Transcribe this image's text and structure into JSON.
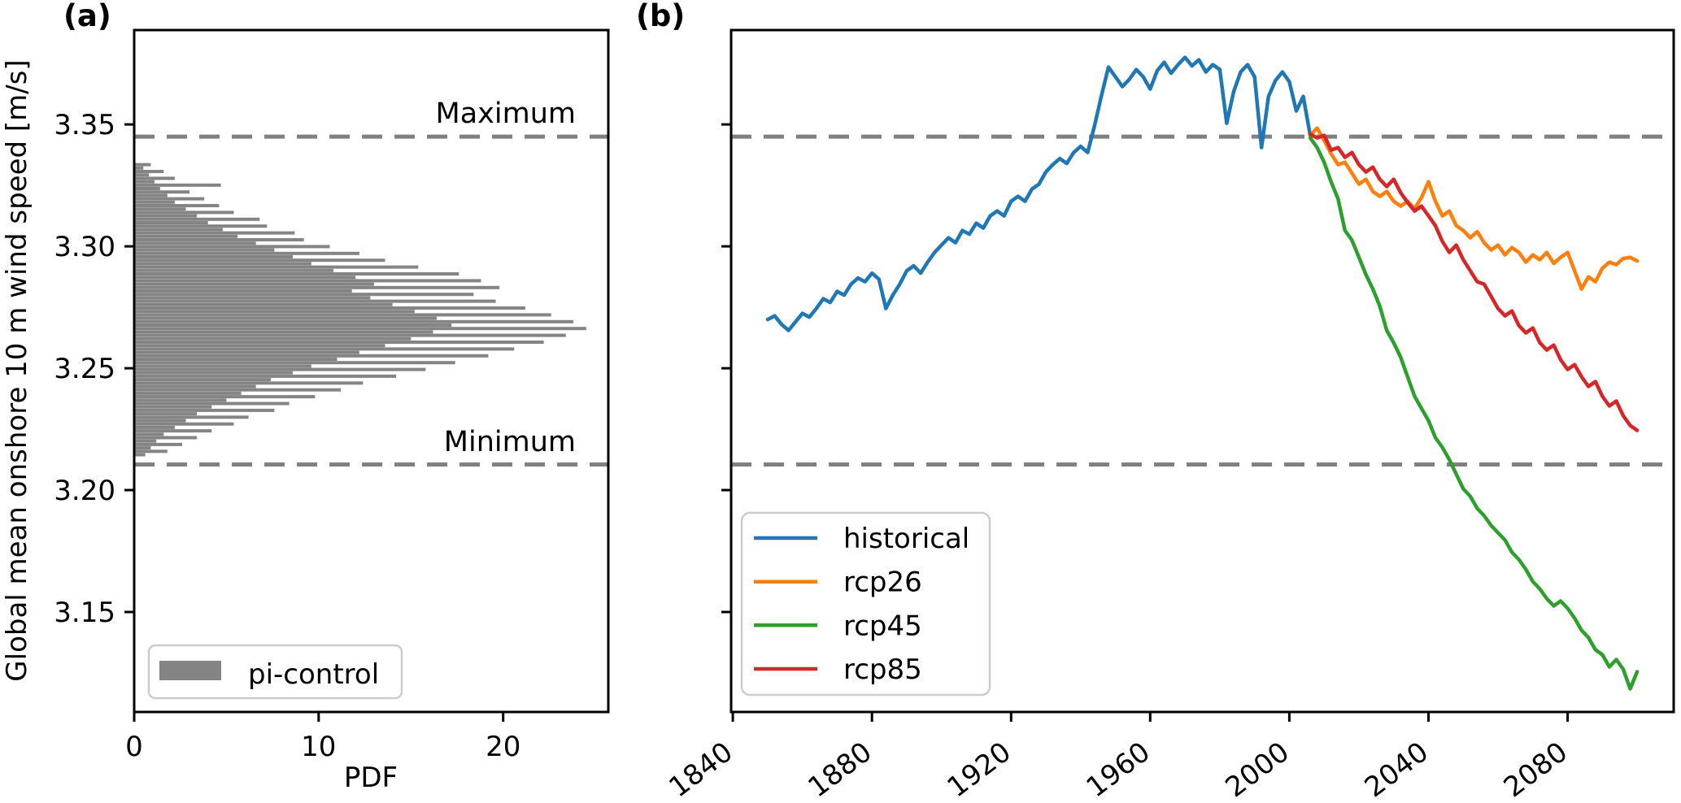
{
  "figure": {
    "background": "#ffffff",
    "text_color": "#000000",
    "dashed_line_color": "#808080",
    "histogram_color": "#848484",
    "legend_border_color": "#cccccc"
  },
  "chart_data": [
    {
      "type": "bar",
      "panel_label": "(a)",
      "orientation": "horizontal",
      "xlabel": "PDF",
      "ylabel": "Global mean onshore 10 m wind speed [m/s]",
      "xlim": [
        0,
        25.7
      ],
      "ylim": [
        3.109,
        3.3887
      ],
      "xticks": [
        0,
        10,
        20
      ],
      "yticks": [
        3.15,
        3.2,
        3.25,
        3.3,
        3.35
      ],
      "grid": false,
      "legend_position": "lower left",
      "legend": [
        {
          "label": "pi-control",
          "color": "#848484"
        }
      ],
      "reference_lines": {
        "max": {
          "label": "Maximum",
          "value": 3.345
        },
        "min": {
          "label": "Minimum",
          "value": 3.2105
        }
      },
      "bins": {
        "start": 3.2145,
        "step": 0.0014
      },
      "values": [
        0.6,
        1.8,
        0.9,
        2.6,
        1.2,
        3.4,
        1.6,
        4.2,
        2.2,
        5.4,
        2.8,
        6.2,
        3.4,
        7.6,
        4.2,
        8.4,
        5.0,
        9.8,
        5.8,
        11.2,
        6.6,
        12.4,
        7.4,
        14.2,
        8.6,
        15.8,
        9.6,
        17.4,
        11.0,
        19.2,
        12.2,
        20.6,
        13.6,
        22.2,
        15.0,
        23.4,
        16.2,
        24.5,
        17.2,
        23.8,
        16.4,
        22.6,
        15.2,
        21.2,
        14.0,
        19.6,
        12.8,
        18.4,
        11.8,
        19.8,
        13.0,
        18.8,
        12.0,
        17.6,
        10.8,
        15.4,
        9.6,
        13.6,
        8.6,
        12.2,
        7.6,
        10.6,
        6.6,
        9.2,
        5.6,
        8.7,
        4.8,
        7.2,
        4.0,
        6.8,
        3.4,
        5.4,
        2.8,
        4.6,
        2.2,
        3.8,
        1.8,
        3.0,
        1.4,
        4.7,
        1.1,
        2.2,
        0.8,
        1.6,
        0.5,
        0.9
      ]
    },
    {
      "type": "line",
      "panel_label": "(b)",
      "xlabel": "",
      "xlim": [
        1839.5,
        2110.5
      ],
      "ylim": [
        3.109,
        3.3887
      ],
      "xticks": [
        1840,
        1880,
        1920,
        1960,
        2000,
        2040,
        2080
      ],
      "yticks": [
        3.15,
        3.2,
        3.25,
        3.3,
        3.35
      ],
      "xtick_rotation": 37,
      "grid": false,
      "legend_position": "lower left",
      "reference_lines": {
        "max": {
          "value": 3.345
        },
        "min": {
          "value": 3.2105
        }
      },
      "series": [
        {
          "name": "historical",
          "color": "#1f77b4",
          "start": 1850,
          "step": 2,
          "values": [
            3.27,
            3.2715,
            3.268,
            3.2655,
            3.269,
            3.2725,
            3.271,
            3.2745,
            3.2785,
            3.277,
            3.2815,
            3.28,
            3.2845,
            3.287,
            3.2855,
            3.289,
            3.2865,
            3.2745,
            3.28,
            3.2845,
            3.29,
            3.292,
            3.289,
            3.2935,
            3.2975,
            3.3005,
            3.3035,
            3.3015,
            3.3065,
            3.305,
            3.3095,
            3.3075,
            3.3125,
            3.3145,
            3.3125,
            3.3185,
            3.3205,
            3.3185,
            3.3235,
            3.3255,
            3.3305,
            3.3335,
            3.336,
            3.334,
            3.3385,
            3.341,
            3.3385,
            3.3495,
            3.362,
            3.3735,
            3.3695,
            3.3655,
            3.3685,
            3.3725,
            3.3695,
            3.3645,
            3.372,
            3.3755,
            3.371,
            3.3745,
            3.3775,
            3.374,
            3.3765,
            3.3715,
            3.3745,
            3.3725,
            3.3505,
            3.3635,
            3.3715,
            3.3745,
            3.3695,
            3.3405,
            3.3615,
            3.368,
            3.3715,
            3.3675,
            3.3555,
            3.3615,
            3.3455
          ]
        },
        {
          "name": "rcp26",
          "color": "#ff7f0e",
          "start": 2006,
          "step": 2,
          "values": [
            3.3455,
            3.3485,
            3.3435,
            3.338,
            3.3335,
            3.3345,
            3.33,
            3.3255,
            3.3275,
            3.3225,
            3.3205,
            3.3225,
            3.3185,
            3.3165,
            3.3185,
            3.3155,
            3.32,
            3.3265,
            3.3185,
            3.3125,
            3.3145,
            3.3085,
            3.3065,
            3.3035,
            3.306,
            3.3015,
            3.2985,
            3.3005,
            3.2965,
            3.2995,
            3.2975,
            3.2935,
            3.2965,
            3.2945,
            3.2975,
            3.293,
            3.2955,
            3.2975,
            3.29,
            3.2825,
            3.2875,
            3.2855,
            3.291,
            3.2935,
            3.2925,
            3.295,
            3.2955,
            3.294
          ]
        },
        {
          "name": "rcp45",
          "color": "#2ca02c",
          "start": 2006,
          "step": 2,
          "values": [
            3.3445,
            3.3405,
            3.3345,
            3.3265,
            3.3195,
            3.3065,
            3.3025,
            3.2955,
            3.2885,
            3.2825,
            3.2755,
            3.2655,
            3.2605,
            3.2545,
            3.2465,
            3.2385,
            3.2335,
            3.2285,
            3.2215,
            3.2175,
            3.2125,
            3.2065,
            3.2005,
            3.1975,
            3.1925,
            3.1895,
            3.1855,
            3.1825,
            3.1795,
            3.1745,
            3.1715,
            3.1675,
            3.1625,
            3.1595,
            3.1555,
            3.1525,
            3.1545,
            3.1515,
            3.1475,
            3.1425,
            3.1395,
            3.1345,
            3.1325,
            3.1275,
            3.1305,
            3.1265,
            3.1185,
            3.1255
          ]
        },
        {
          "name": "rcp85",
          "color": "#d62728",
          "start": 2006,
          "step": 2,
          "values": [
            3.346,
            3.3445,
            3.3455,
            3.3395,
            3.3405,
            3.3365,
            3.3385,
            3.3335,
            3.3305,
            3.3325,
            3.3275,
            3.3245,
            3.3275,
            3.322,
            3.318,
            3.3145,
            3.3165,
            3.3125,
            3.3085,
            3.302,
            3.2975,
            3.3005,
            3.2945,
            3.29,
            3.2855,
            3.2845,
            3.2795,
            3.2745,
            3.2715,
            3.2735,
            3.2675,
            3.2645,
            3.2665,
            3.2605,
            3.2575,
            3.2595,
            3.2535,
            3.2495,
            3.2515,
            3.2465,
            3.2425,
            3.2445,
            3.2385,
            3.2345,
            3.2365,
            3.2305,
            3.2265,
            3.2245
          ]
        }
      ]
    }
  ]
}
